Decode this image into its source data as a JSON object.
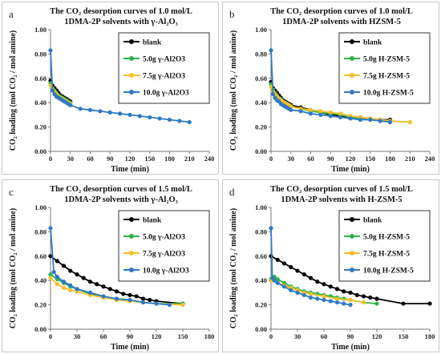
{
  "colors": {
    "blank": "#000000",
    "s1": "#2db24a",
    "s2": "#f5c02c",
    "s3": "#2f79c6"
  },
  "chart_data": [
    {
      "type": "line",
      "panel_letter": "a",
      "title_line1": "The CO₂ desorption curves of 1.0 mol/L",
      "title_line2": "1DMA-2P solvents with γ-Al₂O₃",
      "xlabel": "Time (min)",
      "ylabel": "CO₂ loading (mol CO₂ / mol amine)",
      "xlim": [
        0,
        240
      ],
      "ylim": [
        0,
        1.0
      ],
      "xticks": [
        "0",
        "30",
        "60",
        "90",
        "120",
        "150",
        "180",
        "210",
        "240"
      ],
      "yticks": [
        "0.00",
        "0.20",
        "0.40",
        "0.60",
        "0.80",
        "1.00"
      ],
      "legend_position": "top-right",
      "series": [
        {
          "name": "blank",
          "color": "#000000",
          "x": [
            0,
            3,
            6,
            9,
            12,
            15,
            18,
            21,
            24,
            27,
            30
          ],
          "y": [
            0.58,
            0.54,
            0.52,
            0.5,
            0.48,
            0.46,
            0.45,
            0.44,
            0.43,
            0.42,
            0.41
          ]
        },
        {
          "name": "5.0g γ-Al2O3",
          "color": "#2db24a",
          "x": [
            0,
            3,
            6,
            9,
            12,
            15,
            18,
            21,
            24,
            27,
            30
          ],
          "y": [
            0.56,
            0.52,
            0.5,
            0.48,
            0.46,
            0.45,
            0.44,
            0.43,
            0.42,
            0.41,
            0.4
          ]
        },
        {
          "name": "7.5g γ-Al2O3",
          "color": "#f5c02c",
          "x": [
            0,
            3,
            6,
            9,
            12,
            15,
            18,
            21,
            24,
            27,
            30
          ],
          "y": [
            0.54,
            0.51,
            0.49,
            0.47,
            0.45,
            0.44,
            0.43,
            0.42,
            0.41,
            0.4,
            0.39
          ]
        },
        {
          "name": "10.0g γ-Al2O3",
          "color": "#2f79c6",
          "x": [
            0,
            3,
            6,
            9,
            12,
            15,
            18,
            21,
            24,
            27,
            30,
            45,
            60,
            75,
            90,
            105,
            120,
            135,
            150,
            165,
            180,
            195,
            210
          ],
          "y": [
            0.83,
            0.5,
            0.47,
            0.45,
            0.44,
            0.43,
            0.42,
            0.41,
            0.4,
            0.39,
            0.38,
            0.35,
            0.34,
            0.33,
            0.32,
            0.31,
            0.3,
            0.29,
            0.28,
            0.27,
            0.26,
            0.25,
            0.24
          ]
        }
      ]
    },
    {
      "type": "line",
      "panel_letter": "b",
      "title_line1": "The CO₂ desorption curves of 1.0 mol/L",
      "title_line2": "1DMA-2P solvents with HZSM-5",
      "xlabel": "Time (min)",
      "ylabel": "CO₂ loading (mol CO₂ / mol amine)",
      "xlim": [
        0,
        240
      ],
      "ylim": [
        0,
        1.0
      ],
      "xticks": [
        "0",
        "30",
        "60",
        "90",
        "120",
        "150",
        "180",
        "210",
        "240"
      ],
      "yticks": [
        "0.00",
        "0.20",
        "0.40",
        "0.60",
        "0.80",
        "1.00"
      ],
      "legend_position": "top-right",
      "series": [
        {
          "name": "blank",
          "color": "#000000",
          "x": [
            0,
            3,
            6,
            9,
            12,
            15,
            18,
            21,
            24,
            27,
            30,
            45,
            60,
            75,
            90,
            105,
            120,
            135,
            150,
            165,
            180
          ],
          "y": [
            0.57,
            0.52,
            0.5,
            0.48,
            0.46,
            0.44,
            0.42,
            0.41,
            0.4,
            0.39,
            0.38,
            0.36,
            0.34,
            0.32,
            0.3,
            0.29,
            0.28,
            0.28,
            0.27,
            0.26,
            0.26
          ]
        },
        {
          "name": "5.0g H-ZSM-5",
          "color": "#2db24a",
          "x": [
            0,
            3,
            6,
            9,
            12,
            15,
            18,
            21,
            24,
            27,
            30,
            45,
            60,
            75,
            90,
            105,
            120,
            135,
            150,
            165,
            180,
            210
          ],
          "y": [
            0.55,
            0.51,
            0.48,
            0.46,
            0.44,
            0.43,
            0.41,
            0.4,
            0.39,
            0.38,
            0.37,
            0.35,
            0.33,
            0.32,
            0.31,
            0.3,
            0.28,
            0.27,
            0.27,
            0.26,
            0.25,
            0.24
          ]
        },
        {
          "name": "7.5g H-ZSM-5",
          "color": "#f5c02c",
          "x": [
            0,
            3,
            6,
            9,
            12,
            15,
            18,
            21,
            24,
            27,
            30,
            45,
            60,
            75,
            90,
            105,
            120,
            135,
            150,
            165,
            180,
            210
          ],
          "y": [
            0.53,
            0.49,
            0.47,
            0.45,
            0.43,
            0.42,
            0.41,
            0.4,
            0.39,
            0.38,
            0.37,
            0.35,
            0.34,
            0.33,
            0.32,
            0.31,
            0.29,
            0.28,
            0.27,
            0.26,
            0.25,
            0.24
          ]
        },
        {
          "name": "10.0g H-ZSM-5",
          "color": "#2f79c6",
          "x": [
            0,
            3,
            6,
            9,
            12,
            15,
            18,
            21,
            24,
            27,
            30,
            45,
            60,
            75,
            90,
            105,
            120,
            135,
            150,
            165,
            180
          ],
          "y": [
            0.83,
            0.47,
            0.44,
            0.42,
            0.41,
            0.39,
            0.38,
            0.37,
            0.36,
            0.35,
            0.34,
            0.33,
            0.31,
            0.3,
            0.29,
            0.28,
            0.27,
            0.26,
            0.26,
            0.25,
            0.24
          ]
        }
      ]
    },
    {
      "type": "line",
      "panel_letter": "c",
      "title_line1": "The CO₂ desorption curves of 1.5 mol/L",
      "title_line2": "1DMA-2P solvents with γ-Al₂O₃",
      "xlabel": "Time (min)",
      "ylabel": "CO₂ loading (mol CO₂ / mol amine)",
      "xlim": [
        0,
        180
      ],
      "ylim": [
        0,
        1.0
      ],
      "xticks": [
        "0",
        "30",
        "60",
        "90",
        "120",
        "150",
        "180"
      ],
      "yticks": [
        "0.00",
        "0.20",
        "0.40",
        "0.60",
        "0.80",
        "1.00"
      ],
      "legend_position": "top-right",
      "series": [
        {
          "name": "blank",
          "color": "#000000",
          "x": [
            0,
            7.5,
            15,
            22.5,
            30,
            37.5,
            45,
            52.5,
            60,
            67.5,
            75,
            82.5,
            90,
            97.5,
            105,
            112.5,
            120,
            150
          ],
          "y": [
            0.6,
            0.56,
            0.52,
            0.48,
            0.45,
            0.42,
            0.39,
            0.37,
            0.35,
            0.33,
            0.31,
            0.29,
            0.28,
            0.27,
            0.25,
            0.24,
            0.23,
            0.21
          ]
        },
        {
          "name": "5.0g γ-Al2O3",
          "color": "#2db24a",
          "x": [
            0,
            7.5,
            15,
            22.5,
            30,
            45,
            60,
            75,
            90,
            105,
            120,
            150
          ],
          "y": [
            0.45,
            0.41,
            0.38,
            0.35,
            0.33,
            0.29,
            0.27,
            0.25,
            0.24,
            0.22,
            0.21,
            0.21
          ]
        },
        {
          "name": "7.5g γ-Al2O3",
          "color": "#f5c02c",
          "x": [
            0,
            7.5,
            15,
            22.5,
            30,
            45,
            60,
            75,
            90,
            105,
            120,
            150
          ],
          "y": [
            0.42,
            0.37,
            0.34,
            0.32,
            0.31,
            0.28,
            0.26,
            0.24,
            0.23,
            0.22,
            0.21,
            0.2
          ]
        },
        {
          "name": "10.0g γ-Al2O3",
          "color": "#2f79c6",
          "x": [
            0,
            3.75,
            7.5,
            15,
            22.5,
            30,
            45,
            60,
            75,
            90,
            105,
            120,
            135
          ],
          "y": [
            0.83,
            0.47,
            0.43,
            0.39,
            0.36,
            0.33,
            0.3,
            0.27,
            0.25,
            0.24,
            0.22,
            0.21,
            0.2
          ]
        }
      ]
    },
    {
      "type": "line",
      "panel_letter": "d",
      "title_line1": "The CO₂ desorption curves of 1.5 mol/L",
      "title_line2": "1DMA-2P solvents with H-ZSM-5",
      "xlabel": "Time (min)",
      "ylabel": "CO₂ loading (mol CO₂ / mol amine)",
      "xlim": [
        0,
        180
      ],
      "ylim": [
        0,
        1.0
      ],
      "xticks": [
        "0",
        "30",
        "60",
        "90",
        "120",
        "150",
        "180"
      ],
      "yticks": [
        "0.00",
        "0.20",
        "0.40",
        "0.60",
        "0.80",
        "1.00"
      ],
      "legend_position": "top-right",
      "series": [
        {
          "name": "blank",
          "color": "#000000",
          "x": [
            0,
            7.5,
            15,
            22.5,
            30,
            37.5,
            45,
            52.5,
            60,
            67.5,
            75,
            82.5,
            90,
            97.5,
            105,
            112.5,
            120,
            150,
            180
          ],
          "y": [
            0.6,
            0.57,
            0.54,
            0.51,
            0.48,
            0.45,
            0.42,
            0.39,
            0.37,
            0.35,
            0.33,
            0.31,
            0.3,
            0.28,
            0.27,
            0.26,
            0.25,
            0.21,
            0.21
          ]
        },
        {
          "name": "5.0g H-ZSM-5",
          "color": "#2db24a",
          "x": [
            0,
            3.75,
            7.5,
            15,
            22.5,
            30,
            37.5,
            45,
            52.5,
            60,
            67.5,
            75,
            82.5,
            90,
            105,
            120
          ],
          "y": [
            0.41,
            0.43,
            0.41,
            0.38,
            0.35,
            0.33,
            0.31,
            0.3,
            0.29,
            0.28,
            0.27,
            0.26,
            0.25,
            0.24,
            0.22,
            0.21
          ]
        },
        {
          "name": "7.5g H-ZSM-5",
          "color": "#f5c02c",
          "x": [
            0,
            7.5,
            15,
            22.5,
            30,
            37.5,
            45,
            60,
            75,
            90,
            105
          ],
          "y": [
            0.4,
            0.38,
            0.36,
            0.34,
            0.32,
            0.3,
            0.29,
            0.27,
            0.25,
            0.24,
            0.22
          ]
        },
        {
          "name": "10.0g H-ZSM-5",
          "color": "#2f79c6",
          "x": [
            0,
            1.5,
            3.75,
            7.5,
            15,
            22.5,
            30,
            37.5,
            45,
            52.5,
            60,
            67.5,
            75,
            82.5,
            90
          ],
          "y": [
            0.83,
            0.42,
            0.4,
            0.38,
            0.35,
            0.32,
            0.3,
            0.28,
            0.26,
            0.25,
            0.24,
            0.23,
            0.22,
            0.21,
            0.2
          ]
        }
      ]
    }
  ]
}
